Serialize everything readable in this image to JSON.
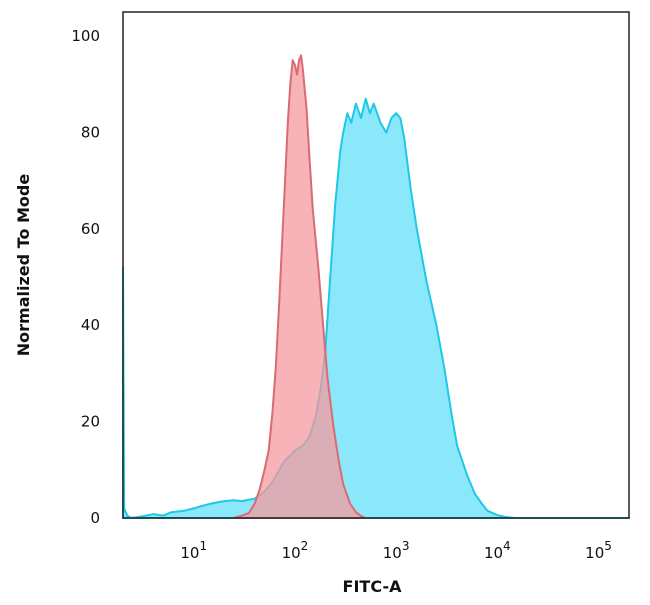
{
  "chart_data": {
    "type": "area",
    "title": "",
    "xlabel": "FITC-A",
    "ylabel": "Normalized To Mode",
    "x_scale": "log",
    "xlim": [
      2,
      200000
    ],
    "ylim": [
      0,
      105
    ],
    "x_ticks": [
      {
        "value": 10,
        "base": "10",
        "exp": "1"
      },
      {
        "value": 100,
        "base": "10",
        "exp": "2"
      },
      {
        "value": 1000,
        "base": "10",
        "exp": "3"
      },
      {
        "value": 10000,
        "base": "10",
        "exp": "4"
      },
      {
        "value": 100000,
        "base": "10",
        "exp": "5"
      }
    ],
    "y_ticks": [
      "0",
      "20",
      "40",
      "60",
      "80",
      "100"
    ],
    "grid": false,
    "legend": "none",
    "series": [
      {
        "color": "#1ec8e6",
        "fill": "#8be8fb",
        "points": [
          [
            2,
            52
          ],
          [
            2.05,
            2
          ],
          [
            2.2,
            0.5
          ],
          [
            2.4,
            0
          ],
          [
            3,
            0.3
          ],
          [
            4,
            0.8
          ],
          [
            5,
            0.5
          ],
          [
            6,
            1.2
          ],
          [
            8,
            1.5
          ],
          [
            10,
            2
          ],
          [
            12,
            2.5
          ],
          [
            15,
            3
          ],
          [
            20,
            3.5
          ],
          [
            25,
            3.7
          ],
          [
            30,
            3.5
          ],
          [
            35,
            3.8
          ],
          [
            40,
            4
          ],
          [
            50,
            5.5
          ],
          [
            60,
            7.5
          ],
          [
            70,
            10
          ],
          [
            80,
            12
          ],
          [
            90,
            13
          ],
          [
            100,
            14
          ],
          [
            120,
            15
          ],
          [
            140,
            17
          ],
          [
            160,
            21
          ],
          [
            180,
            27
          ],
          [
            200,
            35
          ],
          [
            220,
            48
          ],
          [
            250,
            65
          ],
          [
            280,
            76
          ],
          [
            300,
            80
          ],
          [
            330,
            84
          ],
          [
            360,
            82
          ],
          [
            400,
            86
          ],
          [
            450,
            83
          ],
          [
            500,
            87
          ],
          [
            550,
            84
          ],
          [
            600,
            86
          ],
          [
            700,
            82
          ],
          [
            800,
            80
          ],
          [
            900,
            83
          ],
          [
            1000,
            84
          ],
          [
            1100,
            83
          ],
          [
            1200,
            79
          ],
          [
            1400,
            68
          ],
          [
            1600,
            60
          ],
          [
            2000,
            49
          ],
          [
            2500,
            40
          ],
          [
            3000,
            31
          ],
          [
            3500,
            22
          ],
          [
            4000,
            15
          ],
          [
            5000,
            9
          ],
          [
            6000,
            5
          ],
          [
            7000,
            3
          ],
          [
            8000,
            1.5
          ],
          [
            10000,
            0.6
          ],
          [
            12000,
            0.2
          ],
          [
            15000,
            0
          ],
          [
            200000,
            0
          ]
        ]
      },
      {
        "color": "#d96b73",
        "fill": "#f59aa0",
        "points": [
          [
            25,
            0
          ],
          [
            30,
            0.5
          ],
          [
            35,
            1
          ],
          [
            40,
            3
          ],
          [
            45,
            6
          ],
          [
            50,
            10
          ],
          [
            55,
            14
          ],
          [
            60,
            22
          ],
          [
            65,
            32
          ],
          [
            70,
            45
          ],
          [
            75,
            58
          ],
          [
            80,
            70
          ],
          [
            85,
            82
          ],
          [
            90,
            90
          ],
          [
            95,
            95
          ],
          [
            100,
            94
          ],
          [
            105,
            92
          ],
          [
            110,
            95
          ],
          [
            115,
            96
          ],
          [
            120,
            93
          ],
          [
            130,
            85
          ],
          [
            140,
            74
          ],
          [
            150,
            64
          ],
          [
            170,
            52
          ],
          [
            190,
            40
          ],
          [
            210,
            29
          ],
          [
            240,
            19
          ],
          [
            270,
            12
          ],
          [
            300,
            7
          ],
          [
            350,
            3
          ],
          [
            400,
            1.2
          ],
          [
            450,
            0.4
          ],
          [
            500,
            0
          ]
        ]
      }
    ]
  }
}
